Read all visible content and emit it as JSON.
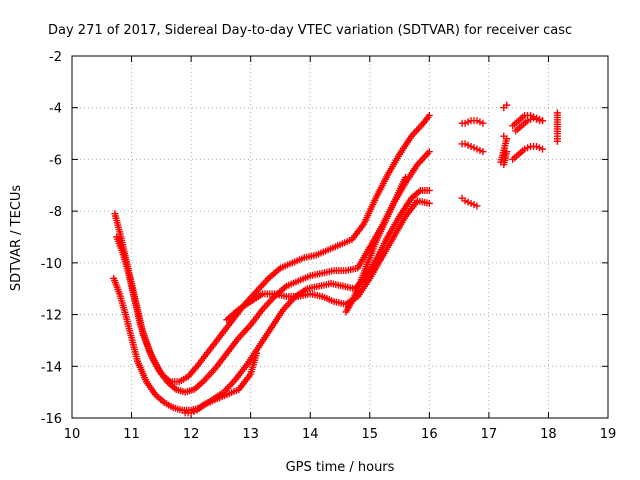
{
  "chart_data": {
    "type": "scatter",
    "title": "Day 271 of 2017, Sidereal Day-to-day VTEC variation (SDTVAR) for receiver casc",
    "xlabel": "GPS time / hours",
    "ylabel": "SDTVAR / TECUs",
    "xlim": [
      10,
      19
    ],
    "ylim": [
      -16,
      -2
    ],
    "xticks": [
      10,
      11,
      12,
      13,
      14,
      15,
      16,
      17,
      18,
      19
    ],
    "yticks": [
      -16,
      -14,
      -12,
      -10,
      -8,
      -6,
      -4,
      -2
    ],
    "xtick_labels": [
      "10",
      "11",
      "12",
      "13",
      "14",
      "15",
      "16",
      "17",
      "18",
      "19"
    ],
    "ytick_labels": [
      "-16",
      "-14",
      "-12",
      "-10",
      "-8",
      "-6",
      "-4",
      "-2"
    ],
    "grid": true,
    "marker": "+",
    "color": "#ff0000",
    "series": [
      {
        "name": "track-1",
        "x": [
          10.72,
          10.8,
          10.9,
          11.0,
          11.1,
          11.2,
          11.35,
          11.5,
          11.65,
          11.8,
          11.95,
          12.1,
          12.3,
          12.5,
          12.7,
          12.9,
          13.1,
          13.3,
          13.5,
          13.7,
          13.9,
          14.1,
          14.3,
          14.5,
          14.7,
          14.9,
          15.1,
          15.3,
          15.5,
          15.7,
          15.9,
          16.0
        ],
        "y": [
          -8.1,
          -8.8,
          -9.8,
          -10.8,
          -11.8,
          -12.8,
          -13.7,
          -14.3,
          -14.6,
          -14.6,
          -14.4,
          -14.0,
          -13.4,
          -12.8,
          -12.2,
          -11.6,
          -11.1,
          -10.6,
          -10.2,
          -10.0,
          -9.8,
          -9.7,
          -9.5,
          -9.3,
          -9.1,
          -8.5,
          -7.5,
          -6.6,
          -5.8,
          -5.1,
          -4.6,
          -4.3
        ]
      },
      {
        "name": "track-2",
        "x": [
          10.75,
          10.85,
          10.95,
          11.05,
          11.15,
          11.3,
          11.45,
          11.6,
          11.75,
          11.9,
          12.05,
          12.2,
          12.4,
          12.6,
          12.8,
          13.0,
          13.2,
          13.4,
          13.6,
          13.8,
          14.0,
          14.2,
          14.4,
          14.6,
          14.8,
          15.0,
          15.2,
          15.4,
          15.6,
          15.8,
          16.0
        ],
        "y": [
          -9.0,
          -9.6,
          -10.4,
          -11.4,
          -12.4,
          -13.4,
          -14.1,
          -14.6,
          -14.9,
          -15.0,
          -14.9,
          -14.6,
          -14.1,
          -13.5,
          -12.9,
          -12.4,
          -11.8,
          -11.3,
          -10.9,
          -10.7,
          -10.5,
          -10.4,
          -10.3,
          -10.3,
          -10.2,
          -9.4,
          -8.6,
          -7.7,
          -6.9,
          -6.2,
          -5.7
        ]
      },
      {
        "name": "track-3",
        "x": [
          10.7,
          10.8,
          10.9,
          11.0,
          11.1,
          11.25,
          11.4,
          11.55,
          11.7,
          11.85,
          12.0,
          12.15,
          12.35,
          12.55,
          12.75,
          12.95,
          13.15,
          13.35,
          13.55,
          13.75,
          13.95,
          14.15,
          14.35,
          14.55,
          14.75,
          14.95,
          15.1,
          15.3,
          15.5,
          15.7,
          15.85,
          16.0
        ],
        "y": [
          -10.6,
          -11.2,
          -12.0,
          -12.9,
          -13.8,
          -14.6,
          -15.1,
          -15.4,
          -15.6,
          -15.7,
          -15.7,
          -15.6,
          -15.3,
          -15.0,
          -14.5,
          -13.9,
          -13.2,
          -12.5,
          -11.8,
          -11.3,
          -11.0,
          -10.9,
          -10.8,
          -10.9,
          -11.0,
          -10.5,
          -9.9,
          -9.0,
          -8.2,
          -7.5,
          -7.2,
          -7.2
        ]
      },
      {
        "name": "track-4",
        "x": [
          11.9,
          12.0,
          12.1,
          12.2,
          12.4,
          12.6,
          12.8,
          13.0,
          13.1
        ],
        "y": [
          -15.8,
          -15.8,
          -15.7,
          -15.5,
          -15.3,
          -15.1,
          -14.9,
          -14.3,
          -13.5
        ]
      },
      {
        "name": "track-5",
        "x": [
          12.6,
          12.8,
          13.0,
          13.2,
          13.4,
          13.6,
          13.8,
          14.0,
          14.2,
          14.4,
          14.6,
          14.8,
          15.0,
          15.2,
          15.4,
          15.6,
          15.8,
          16.0
        ],
        "y": [
          -12.2,
          -11.8,
          -11.5,
          -11.2,
          -11.2,
          -11.3,
          -11.3,
          -11.2,
          -11.3,
          -11.5,
          -11.6,
          -11.3,
          -10.6,
          -9.8,
          -9.0,
          -8.2,
          -7.6,
          -7.7
        ]
      },
      {
        "name": "track-6",
        "x": [
          14.6,
          14.7,
          14.8,
          14.9,
          15.0,
          15.1,
          15.2,
          15.3,
          15.4,
          15.5,
          15.6
        ],
        "y": [
          -11.9,
          -11.5,
          -11.0,
          -10.4,
          -9.8,
          -9.2,
          -8.7,
          -8.2,
          -7.7,
          -7.2,
          -6.7
        ]
      },
      {
        "name": "late-cluster-a",
        "x": [
          16.55,
          16.6,
          16.7,
          16.8,
          16.9
        ],
        "y": [
          -4.6,
          -4.6,
          -4.5,
          -4.5,
          -4.6
        ]
      },
      {
        "name": "late-cluster-b",
        "x": [
          16.55,
          16.6,
          16.7,
          16.8,
          16.9
        ],
        "y": [
          -5.4,
          -5.4,
          -5.5,
          -5.6,
          -5.7
        ]
      },
      {
        "name": "late-cluster-c",
        "x": [
          16.55,
          16.6,
          16.7,
          16.8
        ],
        "y": [
          -7.5,
          -7.6,
          -7.7,
          -7.8
        ]
      },
      {
        "name": "late-cluster-d",
        "x": [
          17.25,
          17.3
        ],
        "y": [
          -4.0,
          -3.9
        ]
      },
      {
        "name": "late-cluster-e",
        "x": [
          17.25,
          17.3,
          17.2,
          17.25,
          17.3
        ],
        "y": [
          -5.1,
          -5.2,
          -6.1,
          -6.2,
          -5.7
        ]
      },
      {
        "name": "late-cluster-f",
        "x": [
          17.4,
          17.5,
          17.6,
          17.7,
          17.8,
          17.9
        ],
        "y": [
          -4.7,
          -4.5,
          -4.3,
          -4.3,
          -4.4,
          -4.5
        ]
      },
      {
        "name": "late-cluster-g",
        "x": [
          17.45,
          17.55,
          17.65,
          17.75,
          17.85,
          17.9
        ],
        "y": [
          -4.9,
          -4.7,
          -4.5,
          -4.4,
          -4.5,
          -4.5
        ]
      },
      {
        "name": "late-cluster-h",
        "x": [
          17.4,
          17.5,
          17.6,
          17.7,
          17.8,
          17.9
        ],
        "y": [
          -6.0,
          -5.8,
          -5.6,
          -5.5,
          -5.5,
          -5.6
        ]
      },
      {
        "name": "late-cluster-i",
        "x": [
          18.15,
          18.15,
          18.15
        ],
        "y": [
          -4.2,
          -5.0,
          -5.3
        ]
      }
    ]
  }
}
